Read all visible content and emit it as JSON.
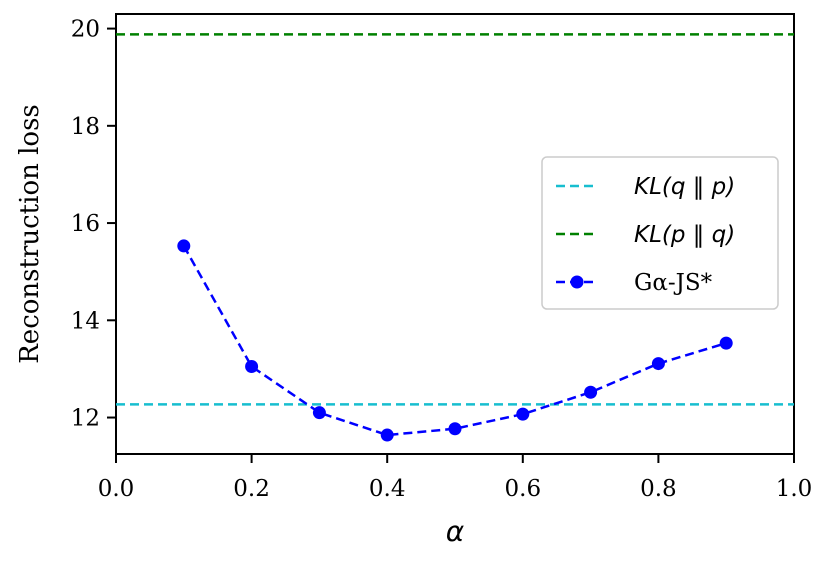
{
  "chart_data": {
    "type": "line",
    "xlabel": "α",
    "ylabel": "Reconstruction loss",
    "xlim": [
      0.0,
      1.0
    ],
    "ylim": [
      11.25,
      20.3
    ],
    "x_ticks": [
      "0.0",
      "0.2",
      "0.4",
      "0.6",
      "0.8",
      "1.0"
    ],
    "y_ticks": [
      "12",
      "14",
      "16",
      "18",
      "20"
    ],
    "grid": false,
    "legend_position": "center-right",
    "series": [
      {
        "name": "KL(q ‖ p)",
        "style": "dashed-hline",
        "color": "#17becf",
        "y": 12.27
      },
      {
        "name": "KL(p ‖ q)",
        "style": "dashed-hline",
        "color": "#008000",
        "y": 19.88
      },
      {
        "name": "Gα-JS*",
        "style": "dashed-line-markers",
        "color": "#0000ff",
        "x": [
          0.1,
          0.2,
          0.3,
          0.4,
          0.5,
          0.6,
          0.7,
          0.8,
          0.9
        ],
        "y": [
          15.53,
          13.05,
          12.1,
          11.64,
          11.77,
          12.07,
          12.52,
          13.11,
          13.53
        ]
      }
    ]
  }
}
